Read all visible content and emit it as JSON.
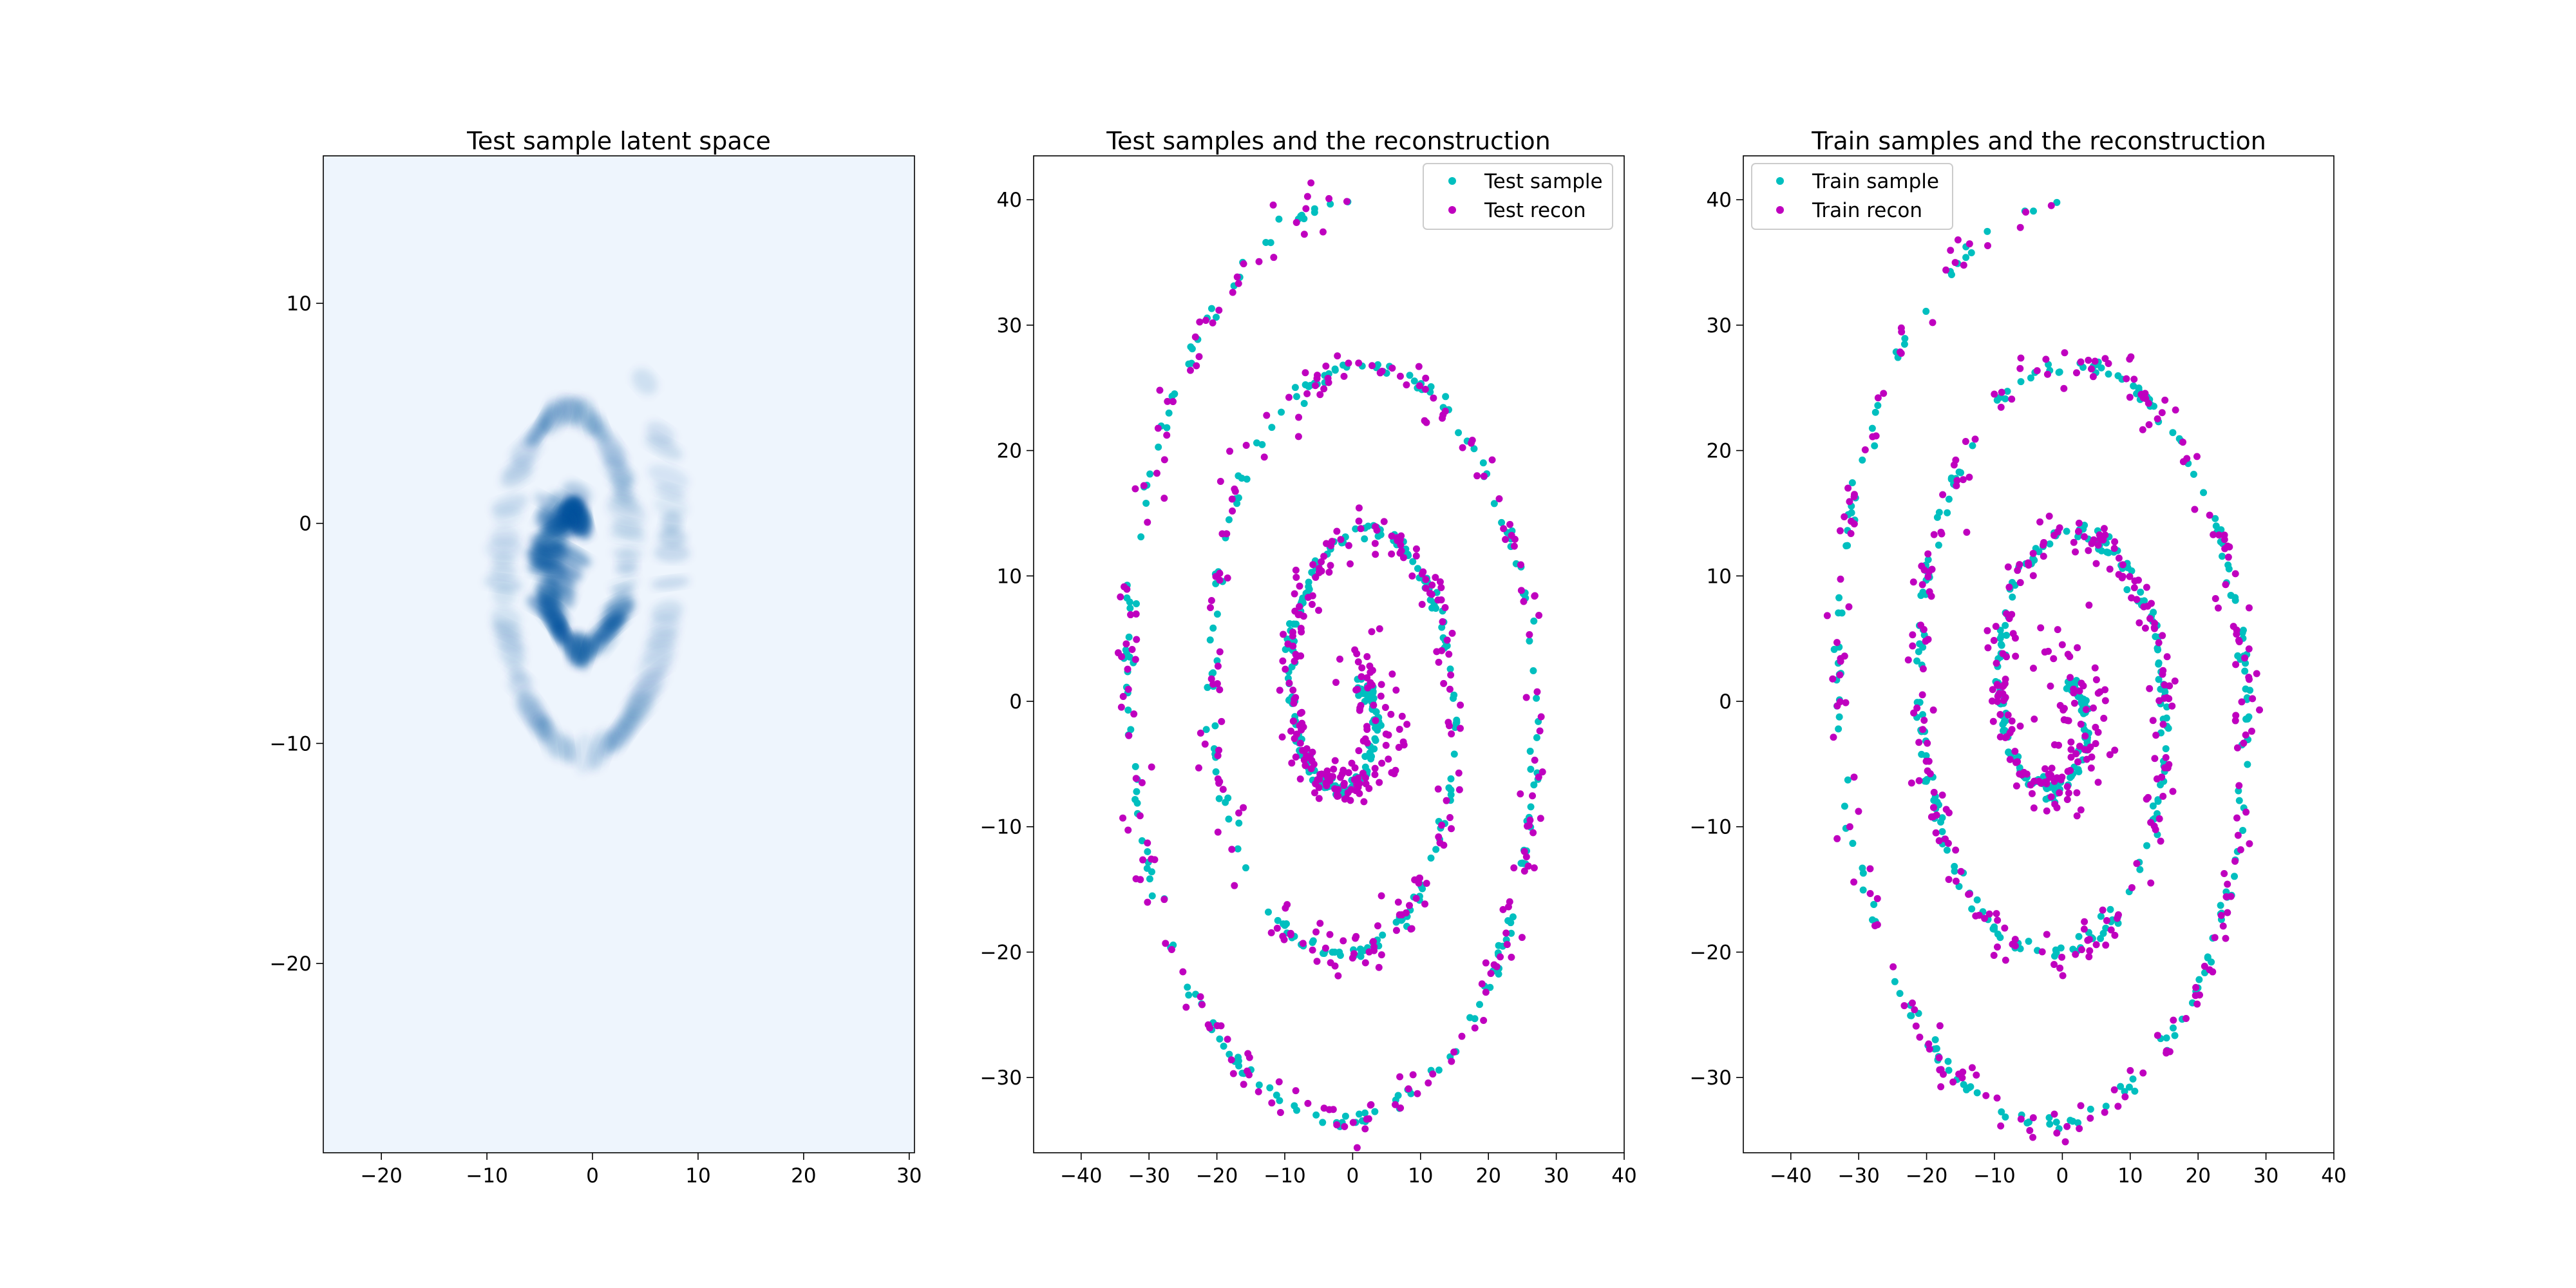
{
  "colors": {
    "test_sample": "#00BFBF",
    "test_recon": "#BF00BF",
    "density_background": "#EEF5FD",
    "density_dark": "#08519C"
  },
  "chart_data": [
    {
      "type": "heatmap",
      "title": "Test sample latent space",
      "xlabel": "",
      "ylabel": "",
      "xlim": [
        -25.5,
        30.5
      ],
      "ylim": [
        -28.6,
        16.7
      ],
      "x_ticks": [
        -20,
        -10,
        0,
        10,
        20,
        30
      ],
      "x_tick_labels": [
        "−20",
        "−10",
        "0",
        "10",
        "20",
        "30"
      ],
      "y_ticks": [
        -20,
        -10,
        0,
        10
      ],
      "y_tick_labels": [
        "−20",
        "−10",
        "0",
        "10"
      ],
      "grid": false,
      "legend": null,
      "description": "kernel density estimate of latent codes forming a spiral",
      "spiral": {
        "center": [
          -1.5,
          -1.5
        ],
        "a": 0.6,
        "b": 0.67,
        "theta_range": [
          1.2,
          13.4
        ],
        "x_scale": 1.0,
        "y_scale": 1.12
      }
    },
    {
      "type": "scatter",
      "title": "Test samples and the reconstruction",
      "xlabel": "",
      "ylabel": "",
      "xlim": [
        -47,
        40
      ],
      "ylim": [
        -36,
        43.5
      ],
      "x_ticks": [
        -40,
        -30,
        -20,
        -10,
        0,
        10,
        20,
        30,
        40
      ],
      "x_tick_labels": [
        "−40",
        "−30",
        "−20",
        "−10",
        "0",
        "10",
        "20",
        "30",
        "40"
      ],
      "y_ticks": [
        -30,
        -20,
        -10,
        0,
        10,
        20,
        30,
        40
      ],
      "y_tick_labels": [
        "−30",
        "−20",
        "−10",
        "0",
        "10",
        "20",
        "30",
        "40"
      ],
      "grid": false,
      "legend_position": "upper right",
      "series": [
        {
          "name": "Test sample",
          "color": "#00BFBF"
        },
        {
          "name": "Test recon",
          "color": "#BF00BF"
        }
      ],
      "spiral": {
        "x_amplitude": 36,
        "y_amplitude": 40,
        "turns": 3,
        "x_range": [
          -44,
          36
        ],
        "y_range": [
          -32.5,
          40
        ]
      }
    },
    {
      "type": "scatter",
      "title": "Train samples and the reconstruction",
      "xlabel": "",
      "ylabel": "",
      "xlim": [
        -47,
        40
      ],
      "ylim": [
        -36,
        43.5
      ],
      "x_ticks": [
        -40,
        -30,
        -20,
        -10,
        0,
        10,
        20,
        30,
        40
      ],
      "x_tick_labels": [
        "−40",
        "−30",
        "−20",
        "−10",
        "0",
        "10",
        "20",
        "30",
        "40"
      ],
      "y_ticks": [
        -30,
        -20,
        -10,
        0,
        10,
        20,
        30,
        40
      ],
      "y_tick_labels": [
        "−30",
        "−20",
        "−10",
        "0",
        "10",
        "20",
        "30",
        "40"
      ],
      "grid": false,
      "legend_position": "upper left",
      "series": [
        {
          "name": "Train sample",
          "color": "#00BFBF"
        },
        {
          "name": "Train recon",
          "color": "#BF00BF"
        }
      ],
      "spiral": {
        "x_amplitude": 36,
        "y_amplitude": 40,
        "turns": 3,
        "x_range": [
          -44,
          36
        ],
        "y_range": [
          -32.5,
          40
        ]
      }
    }
  ]
}
